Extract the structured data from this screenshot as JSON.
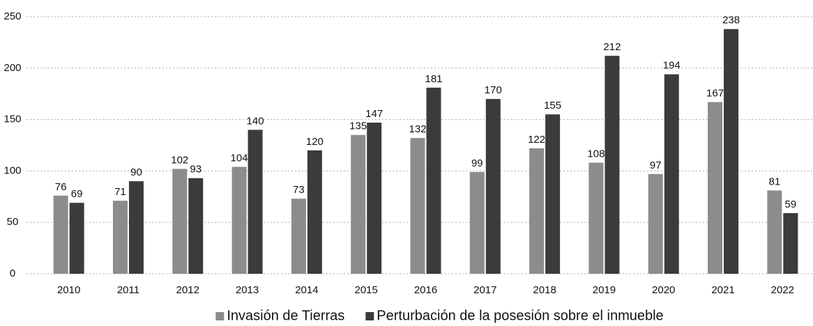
{
  "chart_data": {
    "type": "bar",
    "categories": [
      "2010",
      "2011",
      "2012",
      "2013",
      "2014",
      "2015",
      "2016",
      "2017",
      "2018",
      "2019",
      "2020",
      "2021",
      "2022"
    ],
    "series": [
      {
        "name": "Invasión de Tierras",
        "color": "#8c8c8c",
        "values": [
          76,
          71,
          102,
          104,
          73,
          135,
          132,
          99,
          122,
          108,
          97,
          167,
          81
        ]
      },
      {
        "name": "Perturbación de la posesión sobre el inmueble",
        "color": "#3b3b3b",
        "values": [
          69,
          90,
          93,
          140,
          120,
          147,
          181,
          170,
          155,
          212,
          194,
          238,
          59
        ]
      }
    ],
    "ylim": [
      0,
      250
    ],
    "yticks": [
      0,
      50,
      100,
      150,
      200,
      250
    ],
    "grid": true,
    "legend": "bottom"
  }
}
